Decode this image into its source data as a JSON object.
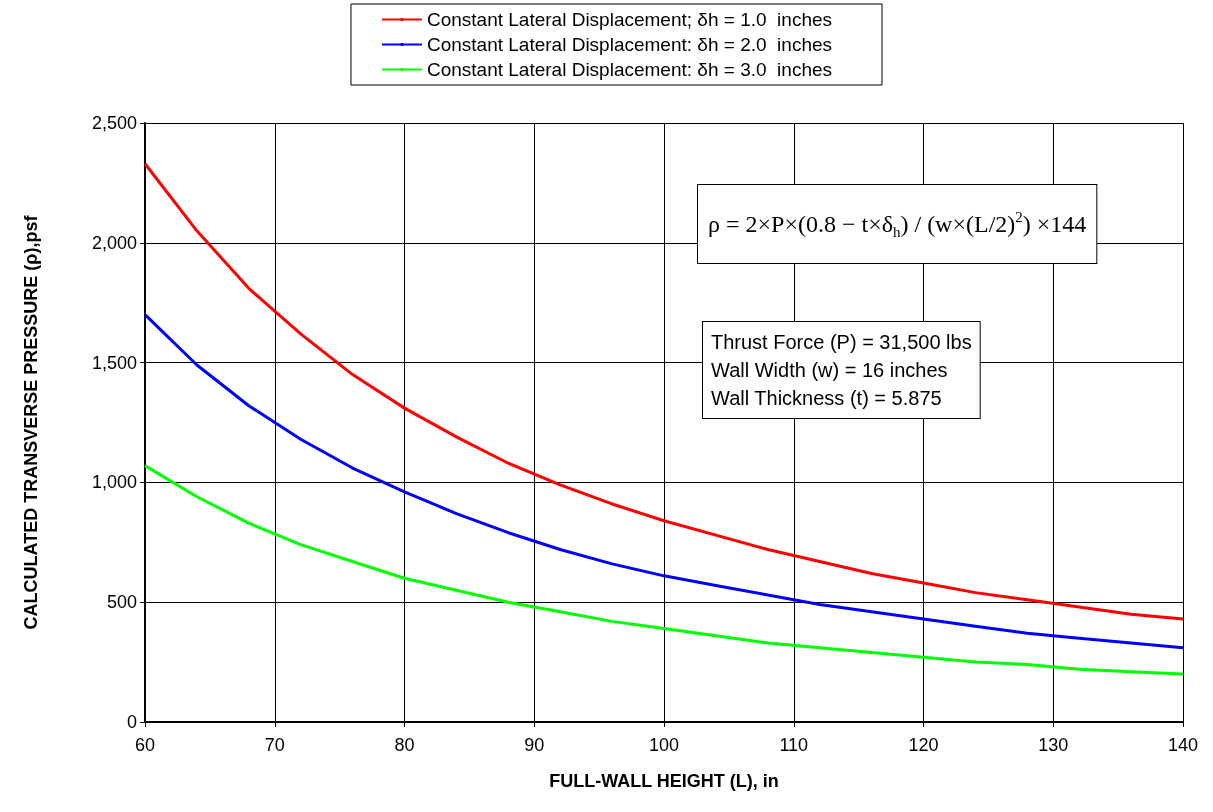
{
  "chart_data": {
    "type": "line",
    "xlabel": "FULL-WALL HEIGHT (L), in",
    "ylabel": "CALCULATED TRANSVERSE PRESSURE (ρ),psf",
    "x": [
      60,
      64,
      68,
      72,
      76,
      80,
      84,
      88,
      92,
      96,
      100,
      104,
      108,
      112,
      116,
      120,
      124,
      128,
      132,
      136,
      140
    ],
    "series": [
      {
        "name": "Constant Lateral Displacement; δh = 1.0  inches",
        "color": "#ff0000",
        "values": [
          2330,
          2050,
          1810,
          1620,
          1450,
          1310,
          1190,
          1080,
          990,
          910,
          840,
          780,
          720,
          670,
          620,
          580,
          540,
          510,
          480,
          450,
          430
        ]
      },
      {
        "name": "Constant Lateral Displacement: δh = 2.0  inches",
        "color": "#0000ff",
        "values": [
          1700,
          1490,
          1320,
          1180,
          1060,
          960,
          870,
          790,
          720,
          660,
          610,
          570,
          530,
          490,
          460,
          430,
          400,
          370,
          350,
          330,
          310
        ]
      },
      {
        "name": "Constant Lateral Displacement: δh = 3.0  inches",
        "color": "#00ff00",
        "values": [
          1070,
          940,
          830,
          740,
          670,
          600,
          550,
          500,
          460,
          420,
          390,
          360,
          330,
          310,
          290,
          270,
          250,
          240,
          220,
          210,
          200
        ]
      }
    ],
    "xlim": [
      60,
      140
    ],
    "xticks": [
      60,
      70,
      80,
      90,
      100,
      110,
      120,
      130,
      140
    ],
    "ylim": [
      0,
      2500
    ],
    "yticks": [
      {
        "value": 0,
        "label": "0"
      },
      {
        "value": 500,
        "label": "500"
      },
      {
        "value": 1000,
        "label": "1,000"
      },
      {
        "value": 1500,
        "label": "1,500"
      },
      {
        "value": 2000,
        "label": "2,000"
      },
      {
        "value": 2500,
        "label": "2,500"
      }
    ],
    "grid": true,
    "legend": "top",
    "marker": "none",
    "line_style": "solid",
    "annotations": [
      "ρ = 2×P×(0.8 − t×δ$_{h}$) / (w×(L/2)$^{2}$) ×144",
      "Thrust Force (P) = 31,500 lbs\nWall Width (w) = 16 inches\nWall Thickness (t) = 5.875"
    ]
  }
}
